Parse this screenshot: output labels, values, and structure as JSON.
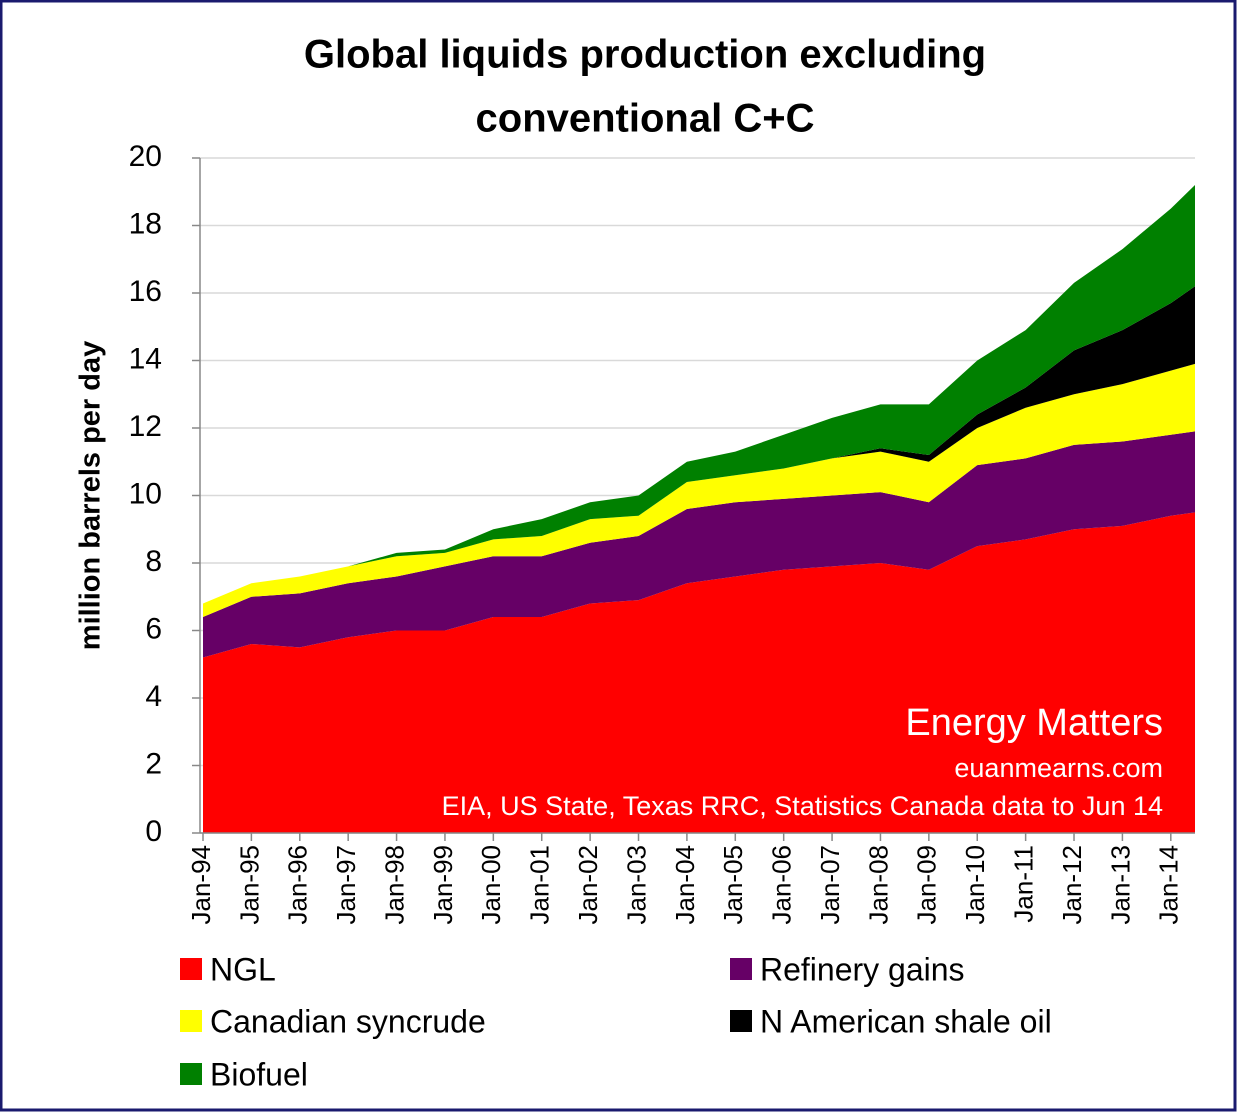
{
  "chart_data": {
    "type": "stacked_area",
    "title": [
      "Global liquids production excluding",
      "conventional C+C"
    ],
    "y_label": "million barrels per day",
    "annotations": [
      "Energy Matters",
      "euanmearns.com",
      "EIA, US State, Texas RRC, Statistics Canada data to Jun 14"
    ],
    "categories": [
      "Jan-94",
      "Jan-95",
      "Jan-96",
      "Jan-97",
      "Jan-98",
      "Jan-99",
      "Jan-00",
      "Jan-01",
      "Jan-02",
      "Jan-03",
      "Jan-04",
      "Jan-05",
      "Jan-06",
      "Jan-07",
      "Jan-08",
      "Jan-09",
      "Jan-10",
      "Jan-11",
      "Jan-12",
      "Jan-13",
      "Jan-14",
      null
    ],
    "series": [
      {
        "name": "NGL",
        "color": "#ff0000",
        "values": [
          5.2,
          5.6,
          5.5,
          5.8,
          6.0,
          6.0,
          6.4,
          6.4,
          6.8,
          6.9,
          7.4,
          7.6,
          7.8,
          7.9,
          8.0,
          7.8,
          8.5,
          8.7,
          9.0,
          9.1,
          9.4,
          9.5
        ]
      },
      {
        "name": "Refinery gains",
        "color": "#660066",
        "values": [
          1.2,
          1.4,
          1.6,
          1.6,
          1.6,
          1.9,
          1.8,
          1.8,
          1.8,
          1.9,
          2.2,
          2.2,
          2.1,
          2.1,
          2.1,
          2.0,
          2.4,
          2.4,
          2.5,
          2.5,
          2.4,
          2.4
        ]
      },
      {
        "name": "Canadian syncrude",
        "color": "#ffff00",
        "values": [
          0.4,
          0.4,
          0.5,
          0.5,
          0.6,
          0.4,
          0.5,
          0.6,
          0.7,
          0.6,
          0.8,
          0.8,
          0.9,
          1.1,
          1.2,
          1.2,
          1.1,
          1.5,
          1.5,
          1.7,
          1.9,
          2.0
        ]
      },
      {
        "name": "N American shale oil",
        "color": "#000000",
        "values": [
          0,
          0,
          0,
          0,
          0,
          0,
          0,
          0,
          0,
          0,
          0,
          0,
          0,
          0,
          0.1,
          0.2,
          0.4,
          0.6,
          1.3,
          1.6,
          2.0,
          2.3
        ]
      },
      {
        "name": "Biofuel",
        "color": "#008000",
        "values": [
          0,
          0,
          0,
          0,
          0.1,
          0.1,
          0.3,
          0.5,
          0.5,
          0.6,
          0.6,
          0.7,
          1.0,
          1.2,
          1.3,
          1.5,
          1.6,
          1.7,
          2.0,
          2.4,
          2.8,
          3.0
        ]
      }
    ],
    "ylim": [
      0,
      20
    ],
    "yticks": [
      0,
      2,
      4,
      6,
      8,
      10,
      12,
      14,
      16,
      18,
      20
    ],
    "grid": true
  }
}
